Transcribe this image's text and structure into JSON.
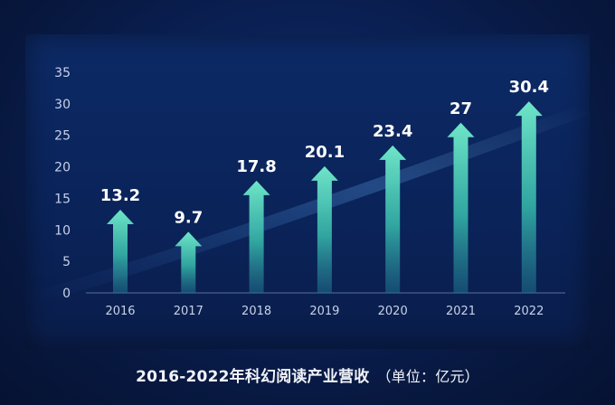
{
  "chart_data": {
    "type": "bar",
    "title": "2016-2022年科幻阅读产业营收",
    "unit_note": "（单位：亿元）",
    "categories": [
      "2016",
      "2017",
      "2018",
      "2019",
      "2020",
      "2021",
      "2022"
    ],
    "values": [
      13.2,
      9.7,
      17.8,
      20.1,
      23.4,
      27,
      30.4
    ],
    "value_labels": [
      "13.2",
      "9.7",
      "17.8",
      "20.1",
      "23.4",
      "27",
      "30.4"
    ],
    "y_ticks": [
      "0",
      "5",
      "10",
      "15",
      "20",
      "25",
      "30",
      "35"
    ],
    "ylim": [
      0,
      35
    ],
    "xlabel": "",
    "ylabel": "",
    "grid": false,
    "legend": "none",
    "bar_color_top": "#6fe6c8",
    "bar_color_bottom": "#1f8f9e",
    "background_color": "#0a2359",
    "text_color": "#ffffff",
    "axis_label_color": "#c8d2e8"
  }
}
